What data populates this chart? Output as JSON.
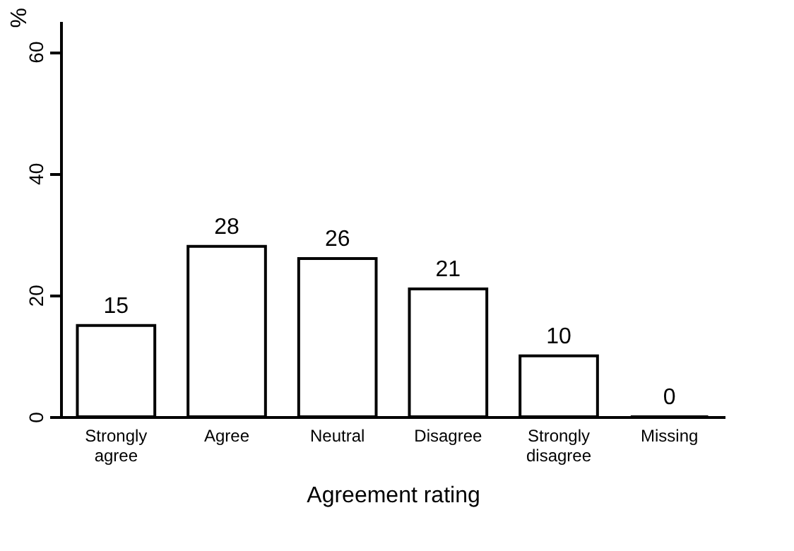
{
  "chart_data": {
    "type": "bar",
    "xlabel": "Agreement rating",
    "ylabel": "%",
    "categories": [
      "Strongly agree",
      "Agree",
      "Neutral",
      "Disagree",
      "Strongly disagree",
      "Missing"
    ],
    "values": [
      15,
      28,
      26,
      21,
      10,
      0
    ],
    "color": "#ffffff",
    "ylim": [
      0,
      65
    ],
    "yticks": [
      0,
      20,
      40,
      60
    ],
    "data_labels": true,
    "grid": false
  }
}
